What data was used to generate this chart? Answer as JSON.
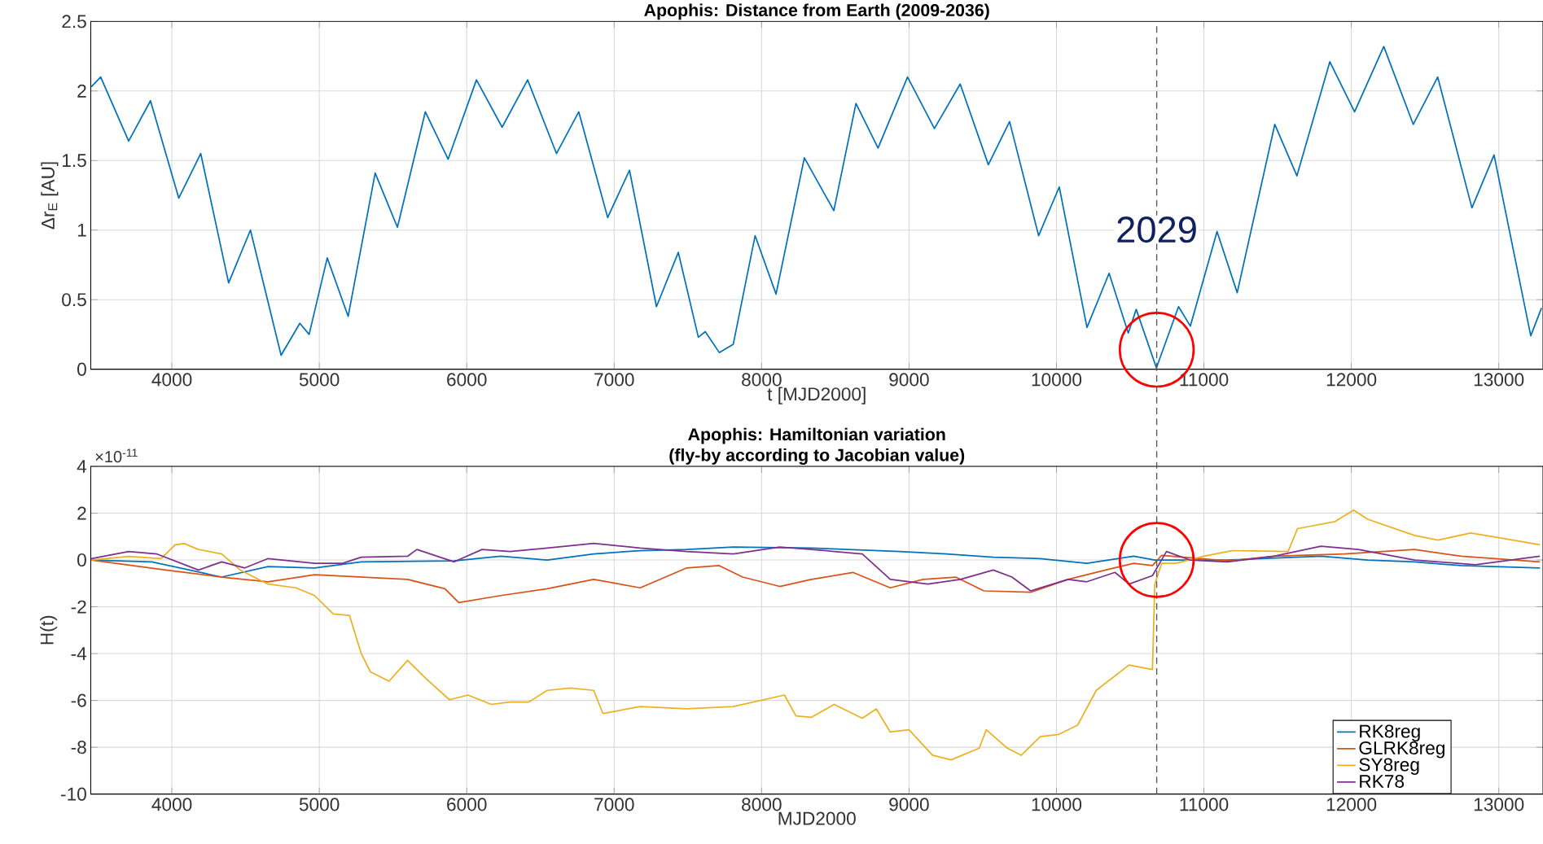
{
  "chart_data": [
    {
      "type": "line",
      "title": "Apophis: Distance from Earth (2009-2036)",
      "xlabel": "t [MJD2000]",
      "ylabel": "Δr$_{E}$ [AU]",
      "xlim": [
        3450,
        13300
      ],
      "ylim": [
        0,
        2.5
      ],
      "xticks": [
        4000,
        5000,
        6000,
        7000,
        8000,
        9000,
        10000,
        11000,
        12000,
        13000
      ],
      "yticks": [
        0,
        0.5,
        1,
        1.5,
        2,
        2.5
      ],
      "grid": true,
      "series": [
        {
          "color": "#0072bd",
          "x": [
            3454,
            3517,
            3707,
            3855,
            4047,
            4196,
            4385,
            4533,
            4741,
            4868,
            4931,
            5054,
            5196,
            5379,
            5530,
            5719,
            5874,
            6066,
            6240,
            6413,
            6609,
            6760,
            6956,
            7104,
            7287,
            7435,
            7571,
            7618,
            7713,
            7808,
            7956,
            8098,
            8290,
            8490,
            8640,
            8790,
            8990,
            9172,
            9347,
            9538,
            9682,
            9879,
            10019,
            10207,
            10357,
            10487,
            10541,
            10678,
            10828,
            10908,
            11089,
            11226,
            11481,
            11631,
            11854,
            12022,
            12220,
            12420,
            12586,
            12818,
            12968,
            13217,
            13290
          ],
          "values": [
            2.03,
            2.1,
            1.64,
            1.93,
            1.23,
            1.55,
            0.62,
            1.0,
            0.1,
            0.33,
            0.25,
            0.8,
            0.38,
            1.41,
            1.02,
            1.85,
            1.51,
            2.08,
            1.74,
            2.08,
            1.55,
            1.85,
            1.09,
            1.43,
            0.45,
            0.84,
            0.23,
            0.27,
            0.12,
            0.18,
            0.96,
            0.54,
            1.52,
            1.14,
            1.91,
            1.59,
            2.1,
            1.73,
            2.05,
            1.47,
            1.78,
            0.96,
            1.31,
            0.3,
            0.69,
            0.26,
            0.43,
            0.01,
            0.45,
            0.31,
            0.99,
            0.55,
            1.76,
            1.39,
            2.21,
            1.85,
            2.32,
            1.76,
            2.1,
            1.16,
            1.54,
            0.24,
            0.44
          ]
        }
      ],
      "ref_lines": [
        {
          "axis": "x",
          "value": 10680,
          "color": "#555555",
          "line_style": "dashed"
        }
      ],
      "annotations": [
        "2029"
      ]
    },
    {
      "type": "line",
      "title": "Apophis: Hamiltonian variation",
      "subtitle": "(fly-by according to Jacobian value)",
      "xlabel": "MJD2000",
      "ylabel": "H(t)",
      "xlim": [
        3450,
        13300
      ],
      "ylim": [
        -10,
        4
      ],
      "xticks": [
        4000,
        5000,
        6000,
        7000,
        8000,
        9000,
        10000,
        11000,
        12000,
        13000
      ],
      "yticks": [
        -10,
        -8,
        -6,
        -4,
        -2,
        0,
        2,
        4
      ],
      "grid": true,
      "legend": "bottom right",
      "series": [
        {
          "name": "RK8reg",
          "color": "#0072bd",
          "x": [
            3454,
            3864,
            4338,
            4653,
            4968,
            5284,
            5915,
            6230,
            6546,
            6861,
            7177,
            7492,
            7808,
            8338,
            8937,
            9254,
            9571,
            9889,
            10206,
            10524,
            10667,
            11159,
            11794,
            12111,
            12429,
            12746,
            13279
          ],
          "values": [
            0,
            -0.08,
            -0.73,
            -0.28,
            -0.34,
            -0.08,
            -0.04,
            0.16,
            0,
            0.26,
            0.4,
            0.45,
            0.55,
            0.51,
            0.36,
            0.26,
            0.12,
            0.06,
            -0.14,
            0.16,
            0,
            0,
            0.16,
            0,
            -0.08,
            -0.24,
            -0.34
          ]
        },
        {
          "name": "GLRK8reg",
          "color": "#d95319",
          "x": [
            3454,
            3959,
            4338,
            4653,
            4968,
            5599,
            5852,
            5946,
            6230,
            6546,
            6861,
            7177,
            7492,
            7713,
            7871,
            8123,
            8338,
            8619,
            8873,
            9095,
            9317,
            9508,
            9825,
            10079,
            10333,
            10524,
            10651,
            10714,
            11159,
            11476,
            11952,
            12429,
            12746,
            13279
          ],
          "values": [
            0,
            -0.43,
            -0.73,
            -0.93,
            -0.63,
            -0.83,
            -1.23,
            -1.82,
            -1.52,
            -1.23,
            -0.83,
            -1.19,
            -0.34,
            -0.24,
            -0.73,
            -1.13,
            -0.83,
            -0.53,
            -1.19,
            -0.83,
            -0.73,
            -1.32,
            -1.38,
            -0.83,
            -0.43,
            -0.14,
            -0.24,
            0.2,
            -0.04,
            0.16,
            0.26,
            0.45,
            0.16,
            -0.08
          ]
        },
        {
          "name": "SY8reg",
          "color": "#edb120",
          "x": [
            3454,
            3707,
            3927,
            4022,
            4085,
            4180,
            4338,
            4464,
            4653,
            4842,
            4968,
            5095,
            5205,
            5284,
            5347,
            5473,
            5599,
            5726,
            5883,
            6009,
            6167,
            6293,
            6420,
            6546,
            6703,
            6861,
            6924,
            7177,
            7492,
            7808,
            8155,
            8233,
            8338,
            8492,
            8683,
            8778,
            8873,
            9000,
            9159,
            9286,
            9476,
            9524,
            9667,
            9762,
            9889,
            10016,
            10143,
            10270,
            10492,
            10651,
            10667,
            10714,
            10810,
            11000,
            11190,
            11571,
            11635,
            11889,
            12016,
            12111,
            12429,
            12587,
            12810,
            13000,
            13279
          ],
          "values": [
            0,
            0.15,
            0.06,
            0.65,
            0.7,
            0.45,
            0.26,
            -0.43,
            -1.03,
            -1.19,
            -1.52,
            -2.31,
            -2.37,
            -3.99,
            -4.78,
            -5.18,
            -4.29,
            -5.08,
            -5.97,
            -5.77,
            -6.17,
            -6.07,
            -6.07,
            -5.57,
            -5.47,
            -5.57,
            -6.56,
            -6.26,
            -6.36,
            -6.26,
            -5.77,
            -6.66,
            -6.72,
            -6.17,
            -6.76,
            -6.36,
            -7.35,
            -7.25,
            -8.34,
            -8.54,
            -8.04,
            -7.25,
            -8.04,
            -8.34,
            -7.55,
            -7.45,
            -7.06,
            -5.57,
            -4.49,
            -4.68,
            -1.03,
            -0.14,
            -0.14,
            0.16,
            0.4,
            0.36,
            1.34,
            1.64,
            2.13,
            1.74,
            1.05,
            0.85,
            1.15,
            0.95,
            0.65
          ]
        },
        {
          "name": "RK78",
          "color": "#7e2f8e",
          "x": [
            3454,
            3707,
            3896,
            4180,
            4338,
            4495,
            4653,
            4968,
            5158,
            5284,
            5599,
            5662,
            5915,
            6104,
            6293,
            6546,
            6861,
            7177,
            7492,
            7808,
            8123,
            8338,
            8683,
            8873,
            9127,
            9349,
            9571,
            9698,
            9825,
            10079,
            10206,
            10397,
            10492,
            10651,
            10746,
            10905,
            11159,
            11476,
            11794,
            12048,
            12429,
            12841,
            13279
          ],
          "values": [
            0.06,
            0.36,
            0.26,
            -0.43,
            -0.08,
            -0.34,
            0.06,
            -0.14,
            -0.14,
            0.12,
            0.16,
            0.45,
            -0.08,
            0.45,
            0.36,
            0.51,
            0.71,
            0.51,
            0.36,
            0.26,
            0.55,
            0.45,
            0.26,
            -0.83,
            -1.03,
            -0.83,
            -0.43,
            -0.73,
            -1.32,
            -0.83,
            -0.93,
            -0.53,
            -1.03,
            -0.67,
            0.36,
            0,
            -0.08,
            0.16,
            0.59,
            0.45,
            0,
            -0.2,
            0.16
          ]
        }
      ],
      "ref_lines": [
        {
          "axis": "x",
          "value": 10680,
          "color": "#555555",
          "line_style": "dashed"
        }
      ],
      "annotations": [
        "×10$^{-11}$"
      ]
    }
  ]
}
